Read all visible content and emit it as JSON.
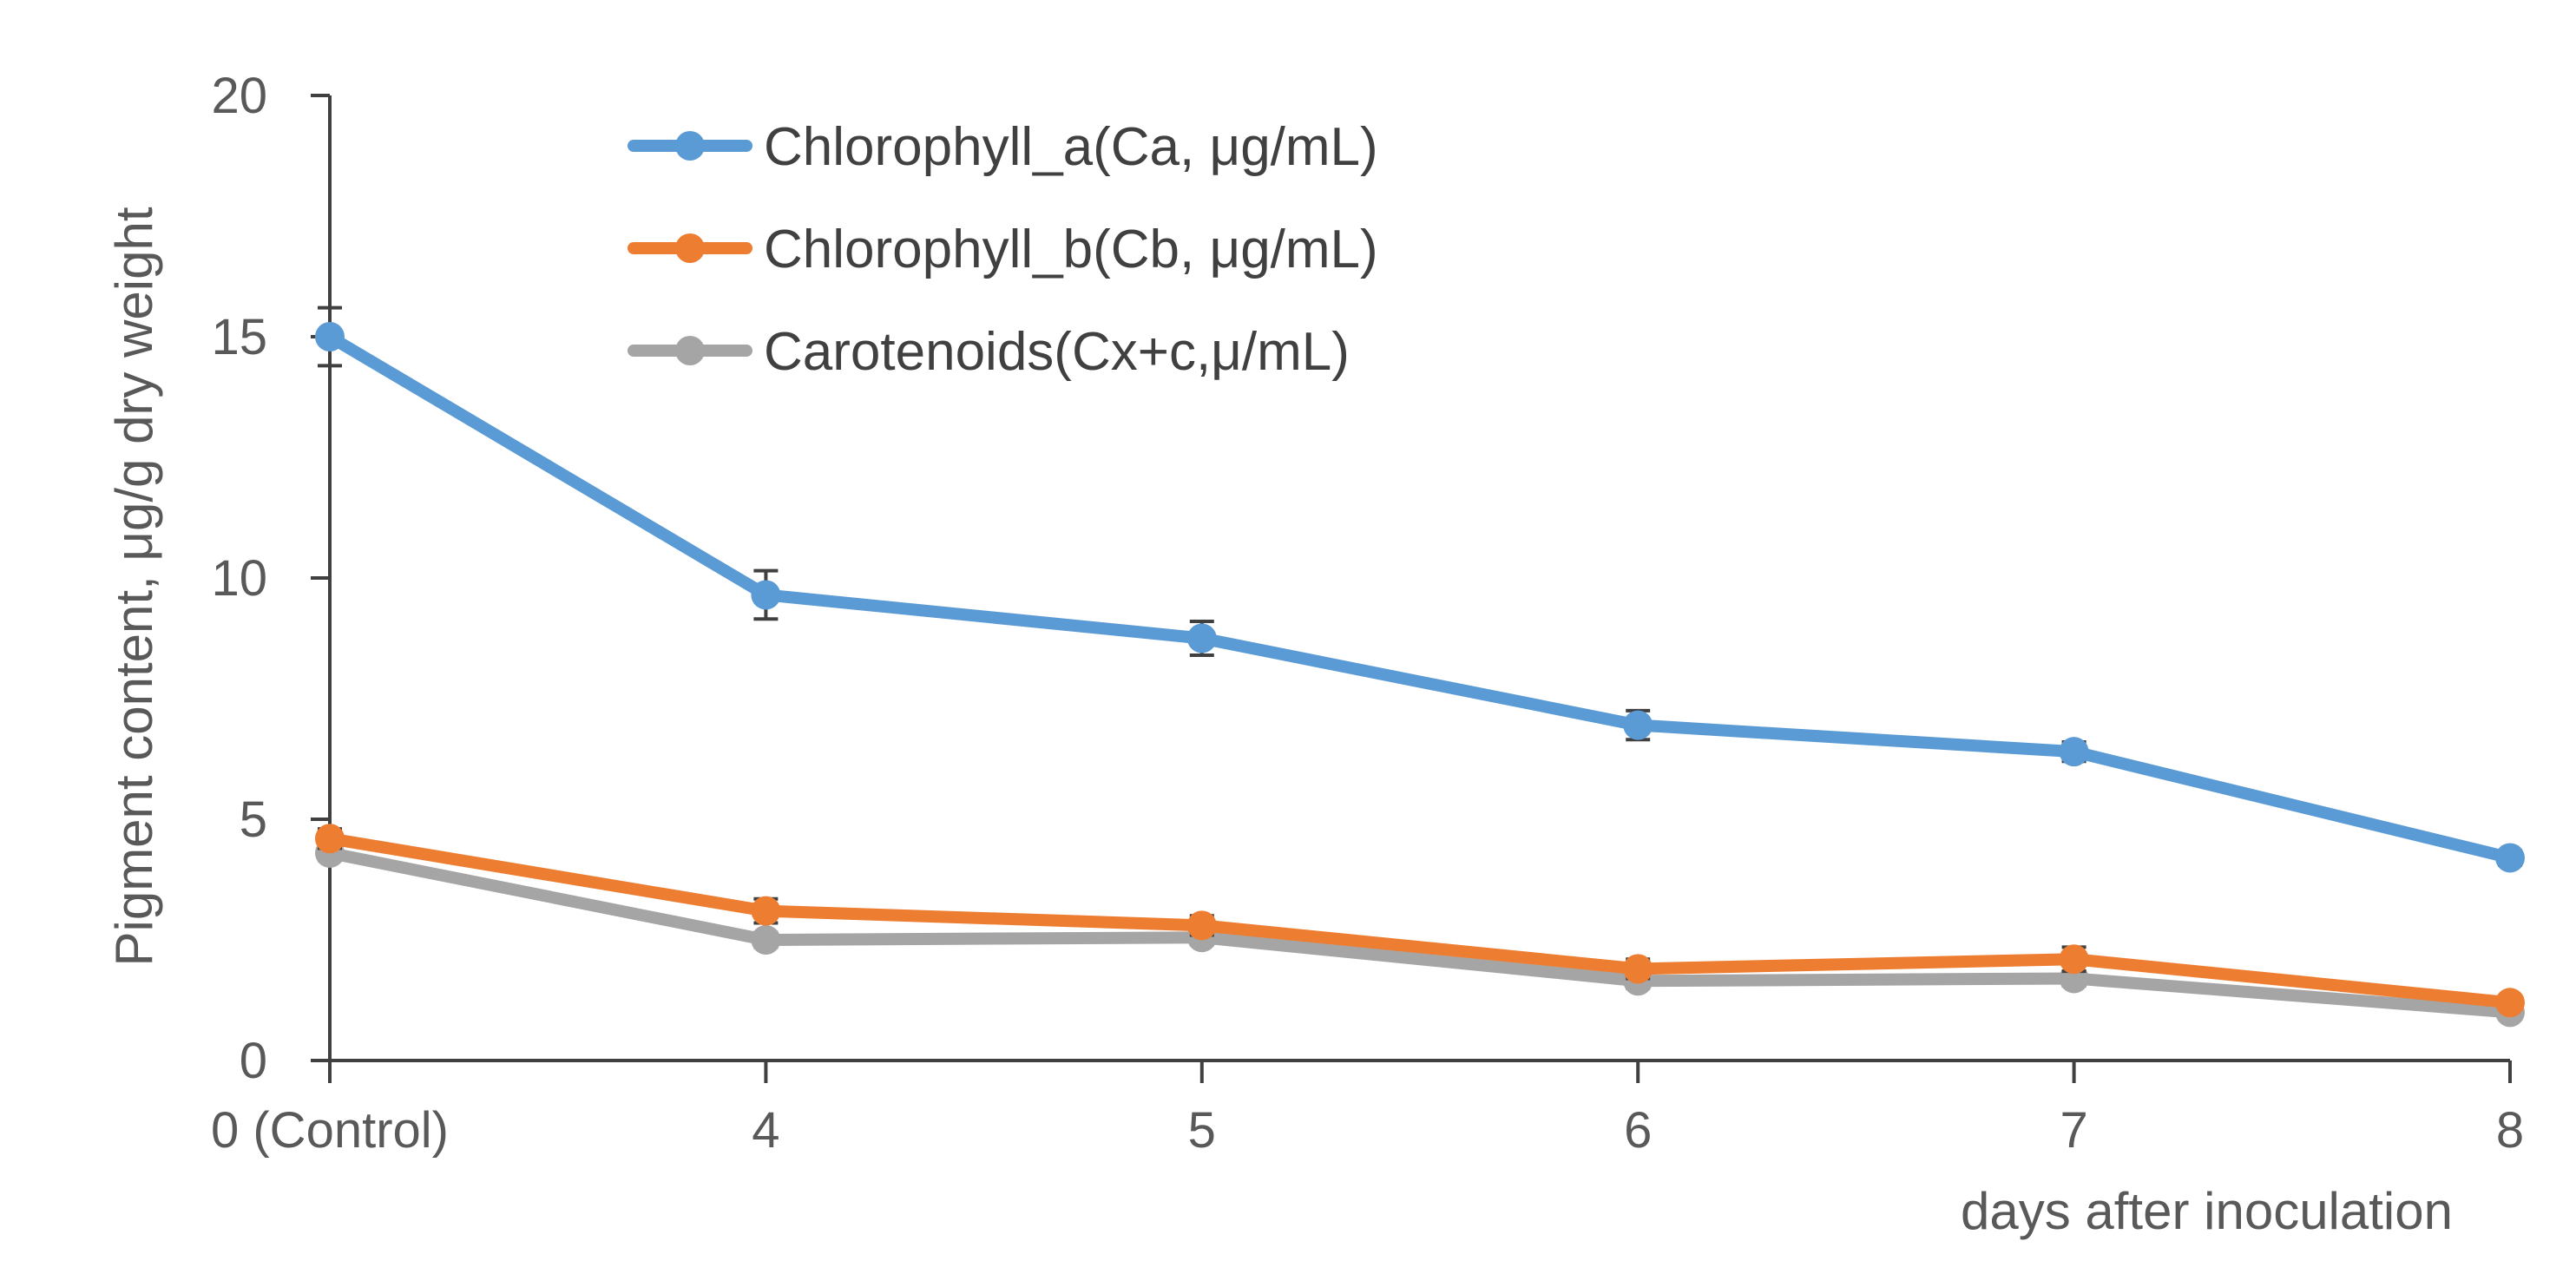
{
  "chart_data": {
    "type": "line",
    "title": "",
    "xlabel": "days after inoculation",
    "ylabel": "Pigment content, μg/g dry weight",
    "categories": [
      "0 (Control)",
      "4",
      "5",
      "6",
      "7",
      "8"
    ],
    "ylim": [
      0,
      20
    ],
    "yticks": [
      0,
      5,
      10,
      15,
      20
    ],
    "grid": false,
    "legend_position": "top-left",
    "series": [
      {
        "name": "Chlorophyll_a(Ca, μg/mL)",
        "color": "#5B9BD5",
        "values": [
          15.0,
          9.65,
          8.75,
          6.95,
          6.4,
          4.2
        ],
        "errors": [
          0.6,
          0.5,
          0.35,
          0.3,
          0.2,
          0.15
        ]
      },
      {
        "name": "Chlorophyll_b(Cb, μg/mL)",
        "color": "#ED7D31",
        "values": [
          4.6,
          3.1,
          2.8,
          1.9,
          2.1,
          1.2
        ],
        "errors": [
          0.2,
          0.25,
          0.2,
          0.2,
          0.25,
          0.1
        ]
      },
      {
        "name": "Carotenoids(Cx+c,μ/mL)",
        "color": "#A5A5A5",
        "values": [
          4.3,
          2.5,
          2.55,
          1.65,
          1.7,
          1.0
        ],
        "errors": [
          0.15,
          0.15,
          0.15,
          0.15,
          0.15,
          0.1
        ]
      }
    ]
  }
}
